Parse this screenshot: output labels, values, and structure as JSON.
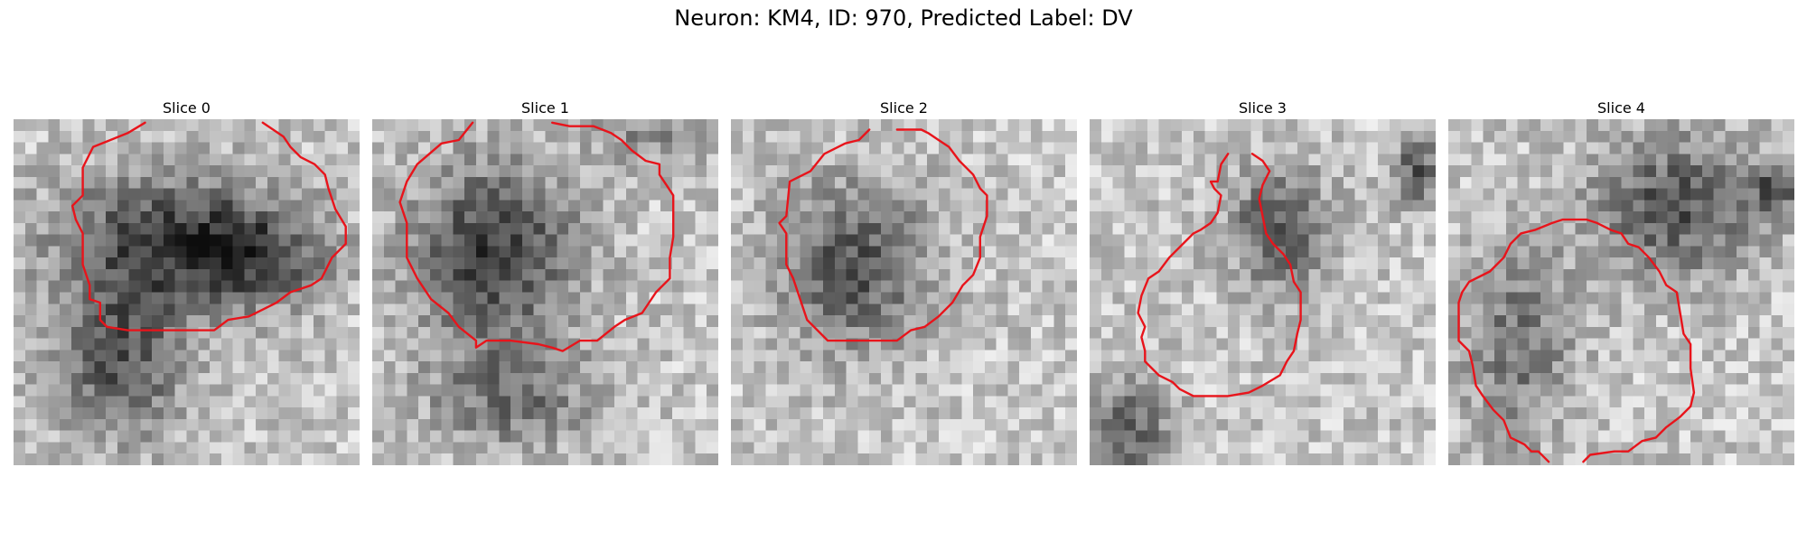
{
  "figure": {
    "title": "Neuron: KM4, ID: 970, Predicted Label: DV"
  },
  "colors": {
    "contour": "#e8141b",
    "background": "#ffffff"
  },
  "slices": [
    {
      "title": "Slice 0",
      "image": "grayscale-microscopy-patch",
      "darkRegions": [
        [
          0.45,
          0.35,
          0.42,
          0.25,
          0.85
        ],
        [
          0.3,
          0.7,
          0.25,
          0.28,
          0.75
        ],
        [
          0.7,
          0.4,
          0.25,
          0.18,
          0.6
        ]
      ],
      "seed": 11,
      "contour": [
        [
          0.38,
          0.01
        ],
        [
          0.33,
          0.04
        ],
        [
          0.28,
          0.06
        ],
        [
          0.23,
          0.08
        ],
        [
          0.2,
          0.14
        ],
        [
          0.2,
          0.22
        ],
        [
          0.17,
          0.25
        ],
        [
          0.18,
          0.29
        ],
        [
          0.2,
          0.33
        ],
        [
          0.2,
          0.42
        ],
        [
          0.22,
          0.48
        ],
        [
          0.22,
          0.52
        ],
        [
          0.25,
          0.53
        ],
        [
          0.25,
          0.58
        ],
        [
          0.27,
          0.6
        ],
        [
          0.33,
          0.61
        ],
        [
          0.52,
          0.61
        ],
        [
          0.58,
          0.61
        ],
        [
          0.62,
          0.58
        ],
        [
          0.68,
          0.57
        ],
        [
          0.72,
          0.55
        ],
        [
          0.76,
          0.53
        ],
        [
          0.8,
          0.5
        ],
        [
          0.86,
          0.48
        ],
        [
          0.89,
          0.46
        ],
        [
          0.92,
          0.4
        ],
        [
          0.96,
          0.36
        ],
        [
          0.96,
          0.31
        ],
        [
          0.93,
          0.26
        ],
        [
          0.91,
          0.2
        ],
        [
          0.9,
          0.16
        ],
        [
          0.87,
          0.13
        ],
        [
          0.83,
          0.11
        ],
        [
          0.8,
          0.08
        ],
        [
          0.78,
          0.05
        ],
        [
          0.75,
          0.03
        ],
        [
          0.72,
          0.01
        ]
      ]
    },
    {
      "title": "Slice 1",
      "image": "grayscale-microscopy-patch",
      "darkRegions": [
        [
          0.35,
          0.38,
          0.3,
          0.32,
          0.9
        ],
        [
          0.4,
          0.8,
          0.3,
          0.2,
          0.55
        ],
        [
          0.8,
          0.05,
          0.2,
          0.1,
          0.4
        ]
      ],
      "seed": 23,
      "contour": [
        [
          0.29,
          0.01
        ],
        [
          0.25,
          0.06
        ],
        [
          0.2,
          0.07
        ],
        [
          0.13,
          0.13
        ],
        [
          0.1,
          0.18
        ],
        [
          0.08,
          0.24
        ],
        [
          0.1,
          0.3
        ],
        [
          0.1,
          0.4
        ],
        [
          0.13,
          0.46
        ],
        [
          0.17,
          0.52
        ],
        [
          0.22,
          0.56
        ],
        [
          0.25,
          0.6
        ],
        [
          0.3,
          0.64
        ],
        [
          0.3,
          0.66
        ],
        [
          0.33,
          0.64
        ],
        [
          0.4,
          0.64
        ],
        [
          0.48,
          0.65
        ],
        [
          0.52,
          0.66
        ],
        [
          0.55,
          0.67
        ],
        [
          0.6,
          0.64
        ],
        [
          0.65,
          0.64
        ],
        [
          0.7,
          0.6
        ],
        [
          0.73,
          0.58
        ],
        [
          0.78,
          0.56
        ],
        [
          0.8,
          0.53
        ],
        [
          0.82,
          0.5
        ],
        [
          0.86,
          0.46
        ],
        [
          0.86,
          0.4
        ],
        [
          0.87,
          0.34
        ],
        [
          0.87,
          0.22
        ],
        [
          0.85,
          0.19
        ],
        [
          0.83,
          0.16
        ],
        [
          0.83,
          0.13
        ],
        [
          0.79,
          0.12
        ],
        [
          0.75,
          0.09
        ],
        [
          0.72,
          0.06
        ],
        [
          0.69,
          0.04
        ],
        [
          0.64,
          0.02
        ],
        [
          0.57,
          0.02
        ],
        [
          0.52,
          0.01
        ]
      ]
    },
    {
      "title": "Slice 2",
      "image": "grayscale-microscopy-patch",
      "darkRegions": [
        [
          0.35,
          0.42,
          0.28,
          0.3,
          0.75
        ]
      ],
      "seed": 37,
      "contour": [
        [
          0.4,
          0.03
        ],
        [
          0.37,
          0.06
        ],
        [
          0.33,
          0.07
        ],
        [
          0.27,
          0.1
        ],
        [
          0.23,
          0.15
        ],
        [
          0.17,
          0.18
        ],
        [
          0.16,
          0.28
        ],
        [
          0.14,
          0.3
        ],
        [
          0.16,
          0.33
        ],
        [
          0.16,
          0.42
        ],
        [
          0.18,
          0.46
        ],
        [
          0.2,
          0.52
        ],
        [
          0.22,
          0.58
        ],
        [
          0.28,
          0.64
        ],
        [
          0.35,
          0.64
        ],
        [
          0.48,
          0.64
        ],
        [
          0.52,
          0.61
        ],
        [
          0.56,
          0.6
        ],
        [
          0.6,
          0.57
        ],
        [
          0.64,
          0.53
        ],
        [
          0.67,
          0.48
        ],
        [
          0.7,
          0.45
        ],
        [
          0.72,
          0.4
        ],
        [
          0.72,
          0.34
        ],
        [
          0.74,
          0.28
        ],
        [
          0.74,
          0.22
        ],
        [
          0.72,
          0.2
        ],
        [
          0.7,
          0.16
        ],
        [
          0.66,
          0.12
        ],
        [
          0.63,
          0.08
        ],
        [
          0.6,
          0.06
        ],
        [
          0.57,
          0.04
        ],
        [
          0.55,
          0.03
        ],
        [
          0.48,
          0.03
        ]
      ]
    },
    {
      "title": "Slice 3",
      "image": "grayscale-microscopy-patch",
      "darkRegions": [
        [
          0.55,
          0.32,
          0.18,
          0.22,
          0.75
        ],
        [
          0.1,
          0.9,
          0.18,
          0.18,
          0.7
        ],
        [
          0.95,
          0.15,
          0.1,
          0.12,
          0.7
        ]
      ],
      "seed": 51,
      "contour": [
        [
          0.4,
          0.1
        ],
        [
          0.38,
          0.13
        ],
        [
          0.37,
          0.18
        ],
        [
          0.35,
          0.18
        ],
        [
          0.36,
          0.2
        ],
        [
          0.38,
          0.22
        ],
        [
          0.37,
          0.27
        ],
        [
          0.35,
          0.3
        ],
        [
          0.32,
          0.32
        ],
        [
          0.3,
          0.33
        ],
        [
          0.27,
          0.36
        ],
        [
          0.23,
          0.4
        ],
        [
          0.2,
          0.44
        ],
        [
          0.17,
          0.46
        ],
        [
          0.15,
          0.51
        ],
        [
          0.14,
          0.56
        ],
        [
          0.16,
          0.6
        ],
        [
          0.15,
          0.63
        ],
        [
          0.16,
          0.67
        ],
        [
          0.16,
          0.7
        ],
        [
          0.2,
          0.74
        ],
        [
          0.24,
          0.76
        ],
        [
          0.26,
          0.78
        ],
        [
          0.3,
          0.8
        ],
        [
          0.4,
          0.8
        ],
        [
          0.46,
          0.79
        ],
        [
          0.5,
          0.77
        ],
        [
          0.55,
          0.74
        ],
        [
          0.57,
          0.7
        ],
        [
          0.59,
          0.67
        ],
        [
          0.6,
          0.62
        ],
        [
          0.61,
          0.58
        ],
        [
          0.61,
          0.5
        ],
        [
          0.59,
          0.47
        ],
        [
          0.58,
          0.42
        ],
        [
          0.56,
          0.39
        ],
        [
          0.53,
          0.36
        ],
        [
          0.51,
          0.33
        ],
        [
          0.5,
          0.28
        ],
        [
          0.49,
          0.23
        ],
        [
          0.5,
          0.19
        ],
        [
          0.52,
          0.15
        ],
        [
          0.5,
          0.12
        ],
        [
          0.47,
          0.1
        ]
      ]
    },
    {
      "title": "Slice 4",
      "image": "grayscale-microscopy-patch",
      "darkRegions": [
        [
          0.65,
          0.25,
          0.3,
          0.25,
          0.75
        ],
        [
          0.95,
          0.2,
          0.1,
          0.1,
          0.7
        ],
        [
          0.2,
          0.65,
          0.2,
          0.35,
          0.55
        ]
      ],
      "seed": 67,
      "contour": [
        [
          0.39,
          0.99
        ],
        [
          0.41,
          0.97
        ],
        [
          0.48,
          0.96
        ],
        [
          0.52,
          0.96
        ],
        [
          0.56,
          0.93
        ],
        [
          0.6,
          0.92
        ],
        [
          0.63,
          0.89
        ],
        [
          0.67,
          0.86
        ],
        [
          0.7,
          0.83
        ],
        [
          0.71,
          0.79
        ],
        [
          0.7,
          0.72
        ],
        [
          0.7,
          0.65
        ],
        [
          0.68,
          0.62
        ],
        [
          0.67,
          0.56
        ],
        [
          0.66,
          0.5
        ],
        [
          0.63,
          0.48
        ],
        [
          0.61,
          0.44
        ],
        [
          0.58,
          0.4
        ],
        [
          0.55,
          0.37
        ],
        [
          0.52,
          0.36
        ],
        [
          0.5,
          0.33
        ],
        [
          0.47,
          0.32
        ],
        [
          0.43,
          0.3
        ],
        [
          0.4,
          0.29
        ],
        [
          0.33,
          0.29
        ],
        [
          0.3,
          0.3
        ],
        [
          0.25,
          0.32
        ],
        [
          0.21,
          0.33
        ],
        [
          0.18,
          0.36
        ],
        [
          0.16,
          0.4
        ],
        [
          0.12,
          0.44
        ],
        [
          0.06,
          0.47
        ],
        [
          0.04,
          0.5
        ],
        [
          0.03,
          0.53
        ],
        [
          0.03,
          0.64
        ],
        [
          0.06,
          0.67
        ],
        [
          0.07,
          0.71
        ],
        [
          0.08,
          0.77
        ],
        [
          0.1,
          0.8
        ],
        [
          0.13,
          0.84
        ],
        [
          0.16,
          0.87
        ],
        [
          0.18,
          0.92
        ],
        [
          0.22,
          0.94
        ],
        [
          0.24,
          0.96
        ],
        [
          0.26,
          0.96
        ],
        [
          0.28,
          0.98
        ],
        [
          0.29,
          0.99
        ]
      ]
    }
  ]
}
